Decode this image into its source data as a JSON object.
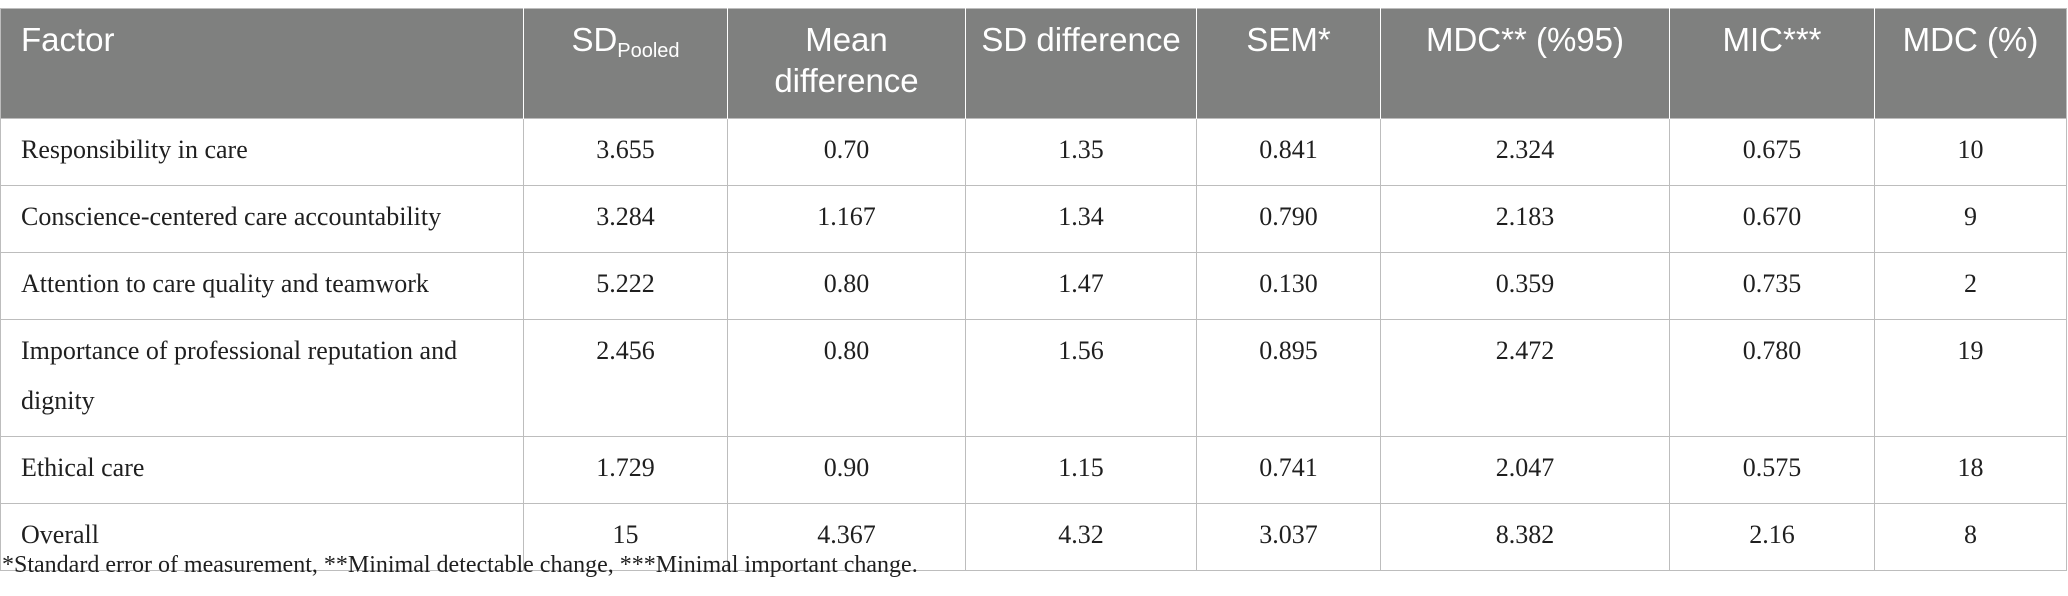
{
  "table": {
    "headers": [
      {
        "text": "Factor"
      },
      {
        "text": "SD",
        "sub": "Pooled"
      },
      {
        "text": "Mean difference"
      },
      {
        "text": "SD difference"
      },
      {
        "text": "SEM*"
      },
      {
        "text": "MDC** (%95)"
      },
      {
        "text": "MIC***"
      },
      {
        "text": "MDC (%)"
      }
    ],
    "rows": [
      [
        "Responsibility in care",
        "3.655",
        "0.70",
        "1.35",
        "0.841",
        "2.324",
        "0.675",
        "10"
      ],
      [
        "Conscience-centered care accountability",
        "3.284",
        "1.167",
        "1.34",
        "0.790",
        "2.183",
        "0.670",
        "9"
      ],
      [
        "Attention to care quality and teamwork",
        "5.222",
        "0.80",
        "1.47",
        "0.130",
        "0.359",
        "0.735",
        "2"
      ],
      [
        "Importance of professional reputation and dignity",
        "2.456",
        "0.80",
        "1.56",
        "0.895",
        "2.472",
        "0.780",
        "19"
      ],
      [
        "Ethical care",
        "1.729",
        "0.90",
        "1.15",
        "0.741",
        "2.047",
        "0.575",
        "18"
      ],
      [
        "Overall",
        "15",
        "4.367",
        "4.32",
        "3.037",
        "8.382",
        "2.16",
        "8"
      ]
    ]
  },
  "footnote": "*Standard error of measurement, **Minimal detectable change, ***Minimal important change."
}
